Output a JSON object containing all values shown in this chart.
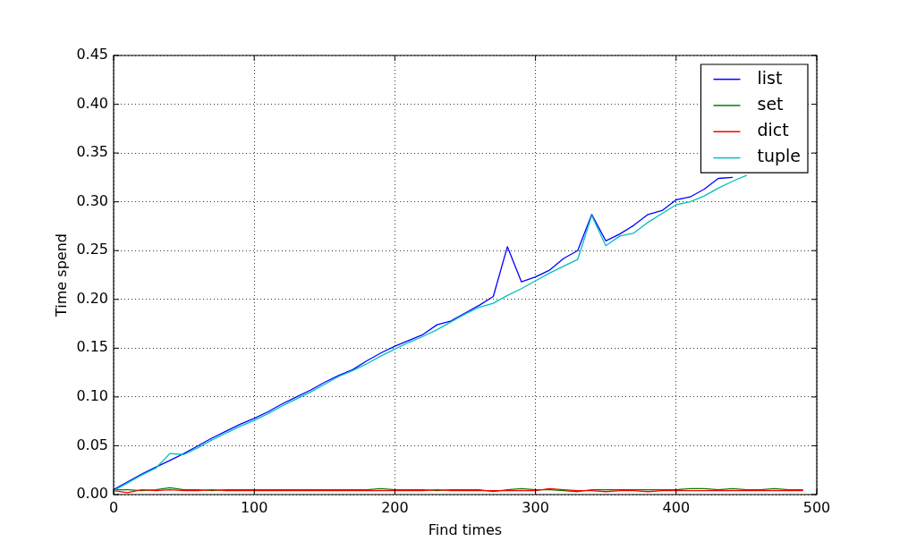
{
  "chart_data": {
    "type": "line",
    "xlabel": "Find times",
    "ylabel": "Time spend",
    "x": [
      0,
      10,
      20,
      30,
      40,
      50,
      60,
      70,
      80,
      90,
      100,
      110,
      120,
      130,
      140,
      150,
      160,
      170,
      180,
      190,
      200,
      210,
      220,
      230,
      240,
      250,
      260,
      270,
      280,
      290,
      300,
      310,
      320,
      330,
      340,
      350,
      360,
      370,
      380,
      390,
      400,
      410,
      420,
      430,
      440,
      450,
      460,
      470,
      480,
      490
    ],
    "series": [
      {
        "name": "list",
        "color": "#0000ff",
        "values": [
          0.005,
          0.013,
          0.021,
          0.028,
          0.035,
          0.042,
          0.05,
          0.058,
          0.065,
          0.072,
          0.078,
          0.085,
          0.093,
          0.1,
          0.107,
          0.115,
          0.122,
          0.128,
          0.137,
          0.145,
          0.152,
          0.158,
          0.164,
          0.174,
          0.178,
          0.186,
          0.194,
          0.203,
          0.254,
          0.218,
          0.223,
          0.23,
          0.242,
          0.25,
          0.287,
          0.26,
          0.267,
          0.276,
          0.287,
          0.291,
          0.302,
          0.305,
          0.313,
          0.324,
          0.325,
          null,
          null,
          null,
          null,
          null
        ]
      },
      {
        "name": "set",
        "color": "#008000",
        "values": [
          0.005,
          0.005,
          0.004,
          0.005,
          0.007,
          0.005,
          0.005,
          0.004,
          0.005,
          0.005,
          0.005,
          0.005,
          0.005,
          0.005,
          0.005,
          0.005,
          0.005,
          0.005,
          0.005,
          0.006,
          0.005,
          0.005,
          0.005,
          0.004,
          0.005,
          0.005,
          0.005,
          0.003,
          0.005,
          0.006,
          0.005,
          0.005,
          0.004,
          0.003,
          0.005,
          0.005,
          0.005,
          0.005,
          0.005,
          0.005,
          0.005,
          0.006,
          0.006,
          0.005,
          0.006,
          0.005,
          0.005,
          0.006,
          0.005,
          0.005
        ]
      },
      {
        "name": "dict",
        "color": "#ff0000",
        "values": [
          0.004,
          0.002,
          0.005,
          0.004,
          0.005,
          0.004,
          0.004,
          0.005,
          0.004,
          0.004,
          0.004,
          0.004,
          0.004,
          0.004,
          0.004,
          0.004,
          0.004,
          0.004,
          0.004,
          0.004,
          0.004,
          0.004,
          0.004,
          0.005,
          0.004,
          0.004,
          0.004,
          0.004,
          0.004,
          0.004,
          0.004,
          0.006,
          0.005,
          0.004,
          0.004,
          0.003,
          0.004,
          0.004,
          0.003,
          0.004,
          0.004,
          0.004,
          0.004,
          0.004,
          0.004,
          0.004,
          0.004,
          0.004,
          0.004,
          0.004
        ]
      },
      {
        "name": "tuple",
        "color": "#00bfbf",
        "values": [
          0.004,
          0.012,
          0.02,
          0.027,
          0.042,
          0.041,
          0.048,
          0.056,
          0.063,
          0.07,
          0.076,
          0.083,
          0.091,
          0.098,
          0.105,
          0.113,
          0.121,
          0.127,
          0.134,
          0.142,
          0.149,
          0.156,
          0.162,
          0.169,
          0.177,
          0.185,
          0.192,
          0.196,
          0.204,
          0.211,
          0.219,
          0.227,
          0.234,
          0.241,
          0.286,
          0.255,
          0.265,
          0.268,
          0.279,
          0.288,
          0.297,
          0.3,
          0.306,
          0.314,
          0.321,
          0.327,
          null,
          null,
          null,
          null
        ]
      }
    ],
    "xlim": [
      0,
      500
    ],
    "ylim": [
      0,
      0.45
    ],
    "xticks": [
      0,
      100,
      200,
      300,
      400,
      500
    ],
    "yticks": [
      {
        "value": 0,
        "label": "0.00"
      },
      0.05,
      {
        "value": 0.1,
        "label": "0.10"
      },
      0.15,
      {
        "value": 0.2,
        "label": "0.20"
      },
      0.25,
      {
        "value": 0.3,
        "label": "0.30"
      },
      0.35,
      {
        "value": 0.4,
        "label": "0.40"
      },
      0.45
    ],
    "grid": true,
    "legend": "top right"
  }
}
